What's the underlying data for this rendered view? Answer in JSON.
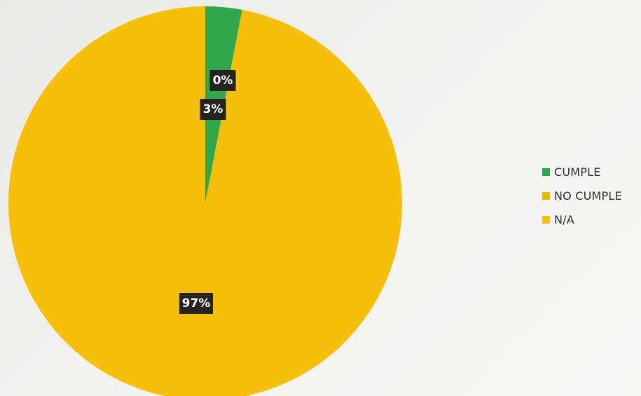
{
  "chart_data": {
    "type": "pie",
    "title": "",
    "slices": [
      {
        "label": "CUMPLE",
        "value": 3,
        "color": "#2ea84a",
        "data_label": "3%"
      },
      {
        "label": "NO CUMPLE",
        "value": 0,
        "color": "#efb60c",
        "data_label": "0%"
      },
      {
        "label": "N/A",
        "value": 97,
        "color": "#f6bf0a",
        "data_label": "97%"
      }
    ],
    "legend_position": "right"
  },
  "legend": {
    "items": [
      {
        "label": "CUMPLE",
        "color": "#2ea84a"
      },
      {
        "label": "NO CUMPLE",
        "color": "#efb60c"
      },
      {
        "label": "N/A",
        "color": "#f6bf0a"
      }
    ]
  }
}
